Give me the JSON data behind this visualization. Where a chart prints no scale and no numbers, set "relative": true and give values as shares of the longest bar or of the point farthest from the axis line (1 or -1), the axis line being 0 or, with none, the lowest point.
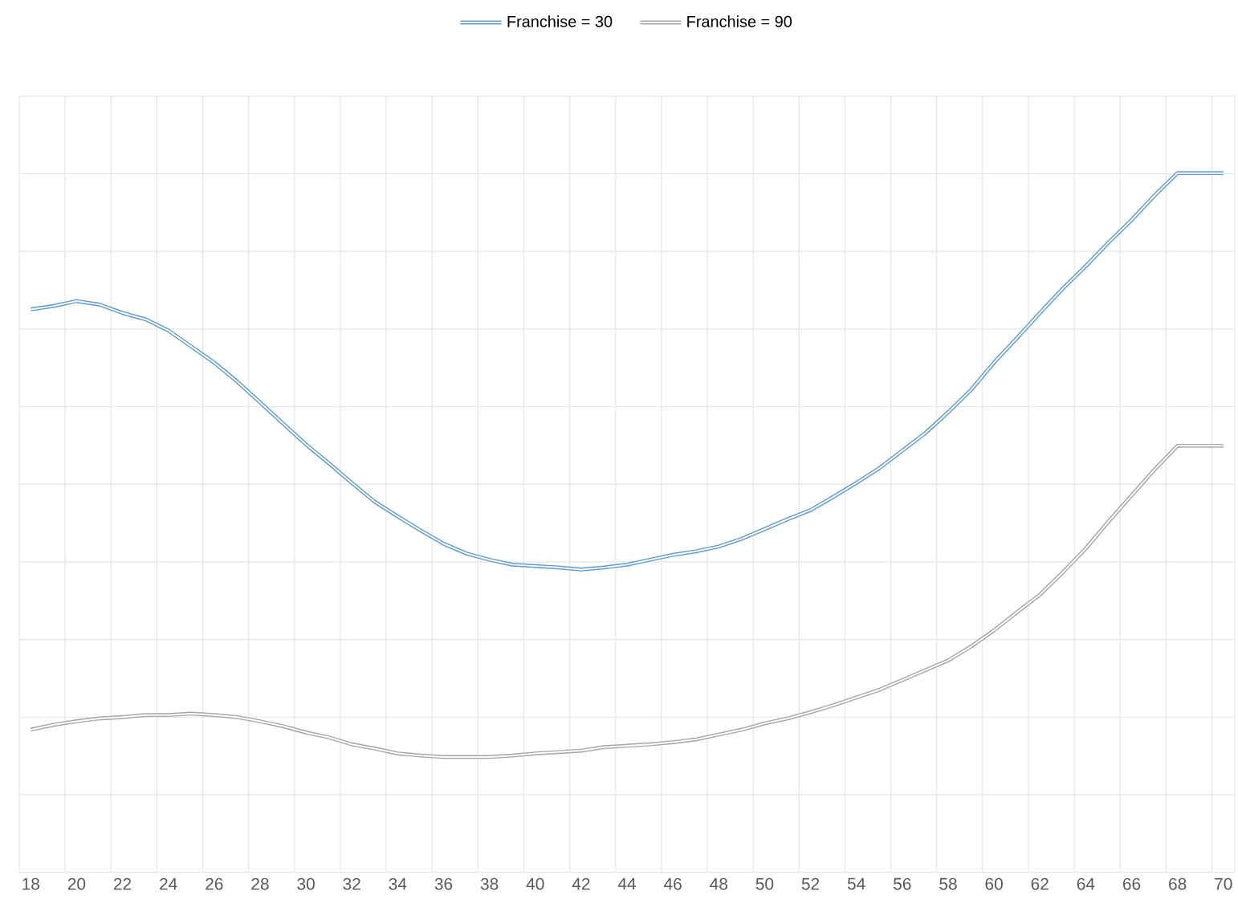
{
  "chart_data": {
    "type": "line",
    "relative": true,
    "grid": true,
    "legend": "top",
    "line_style": "solid",
    "marker": "none",
    "x": [
      18,
      19,
      20,
      21,
      22,
      23,
      24,
      25,
      26,
      27,
      28,
      29,
      30,
      31,
      32,
      33,
      34,
      35,
      36,
      37,
      38,
      39,
      40,
      41,
      42,
      43,
      44,
      45,
      46,
      47,
      48,
      49,
      50,
      51,
      52,
      53,
      54,
      55,
      56,
      57,
      58,
      59,
      60,
      61,
      62,
      63,
      64,
      65,
      66,
      67,
      68,
      69,
      70
    ],
    "xlim": [
      17.5,
      70.5
    ],
    "xticks": [
      18,
      20,
      22,
      24,
      26,
      28,
      30,
      32,
      34,
      36,
      38,
      40,
      42,
      44,
      46,
      48,
      50,
      52,
      54,
      56,
      58,
      60,
      62,
      64,
      66,
      68,
      70
    ],
    "series": [
      {
        "name": "Franchise = 30",
        "color": "#5b9bd5",
        "values": [
          0.805,
          0.81,
          0.817,
          0.812,
          0.8,
          0.791,
          0.775,
          0.752,
          0.729,
          0.702,
          0.672,
          0.642,
          0.612,
          0.585,
          0.557,
          0.53,
          0.509,
          0.489,
          0.47,
          0.456,
          0.447,
          0.44,
          0.438,
          0.436,
          0.433,
          0.436,
          0.44,
          0.447,
          0.454,
          0.459,
          0.466,
          0.477,
          0.491,
          0.505,
          0.518,
          0.537,
          0.557,
          0.578,
          0.603,
          0.628,
          0.658,
          0.69,
          0.729,
          0.764,
          0.8,
          0.835,
          0.867,
          0.901,
          0.933,
          0.968,
          1,
          1,
          1
        ]
      },
      {
        "name": "Franchise = 90",
        "color": "#a5a5a5",
        "values": [
          0.204,
          0.211,
          0.216,
          0.22,
          0.222,
          0.225,
          0.225,
          0.227,
          0.225,
          0.222,
          0.216,
          0.209,
          0.2,
          0.193,
          0.183,
          0.177,
          0.17,
          0.167,
          0.165,
          0.165,
          0.165,
          0.167,
          0.17,
          0.172,
          0.174,
          0.179,
          0.181,
          0.183,
          0.186,
          0.19,
          0.197,
          0.204,
          0.213,
          0.22,
          0.229,
          0.239,
          0.25,
          0.261,
          0.275,
          0.289,
          0.303,
          0.323,
          0.346,
          0.372,
          0.397,
          0.429,
          0.463,
          0.502,
          0.539,
          0.576,
          0.61,
          0.61,
          0.61
        ]
      }
    ]
  }
}
